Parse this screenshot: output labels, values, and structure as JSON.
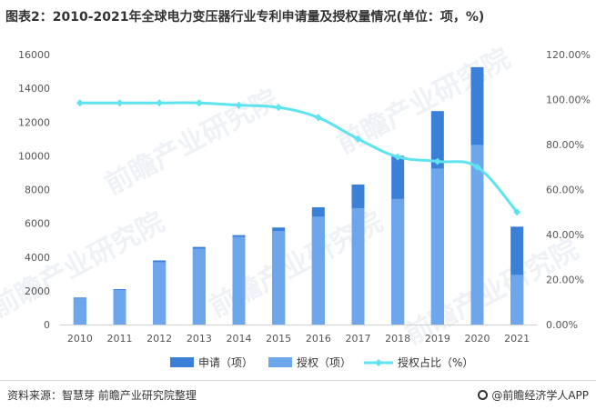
{
  "title": "图表2：2010-2021年全球电力变压器行业专利申请量及授权量情况(单位：项，%)",
  "footer": {
    "source": "资料来源：智慧芽 前瞻产业研究院整理",
    "brand": "@前瞻经济学人APP"
  },
  "watermark": "前瞻产业研究院",
  "colors": {
    "application": "#3a7fd8",
    "grant": "#6ea6ec",
    "rate": "#5ee3f0"
  },
  "chart_data": {
    "type": "bar",
    "categories": [
      "2010",
      "2011",
      "2012",
      "2013",
      "2014",
      "2015",
      "2016",
      "2017",
      "2018",
      "2019",
      "2020",
      "2021"
    ],
    "series": [
      {
        "name": "申请（项）",
        "type": "bar",
        "stacked_total": true,
        "values": [
          1600,
          2100,
          3800,
          4600,
          5300,
          5750,
          6950,
          8300,
          10000,
          12650,
          15250,
          5800
        ]
      },
      {
        "name": "授权（项）",
        "type": "bar",
        "values": [
          1550,
          2050,
          3700,
          4500,
          5200,
          5550,
          6400,
          6900,
          7450,
          9250,
          10650,
          2950
        ]
      },
      {
        "name": "授权占比（%）",
        "type": "line",
        "axis": "right",
        "values": [
          98.5,
          98.5,
          98.5,
          98.5,
          97.5,
          96.5,
          92,
          82.5,
          74.5,
          72.5,
          70,
          50
        ]
      }
    ],
    "y_left": {
      "min": 0,
      "max": 16000,
      "ticks": [
        "0",
        "2000",
        "4000",
        "6000",
        "8000",
        "10000",
        "12000",
        "14000",
        "16000"
      ]
    },
    "y_right": {
      "min": 0,
      "max": 120,
      "ticks": [
        "0.00%",
        "20.00%",
        "40.00%",
        "60.00%",
        "80.00%",
        "100.00%",
        "120.00%"
      ]
    },
    "legend": [
      "申请（项）",
      "授权（项）",
      "授权占比（%）"
    ],
    "legend_position": "bottom"
  }
}
